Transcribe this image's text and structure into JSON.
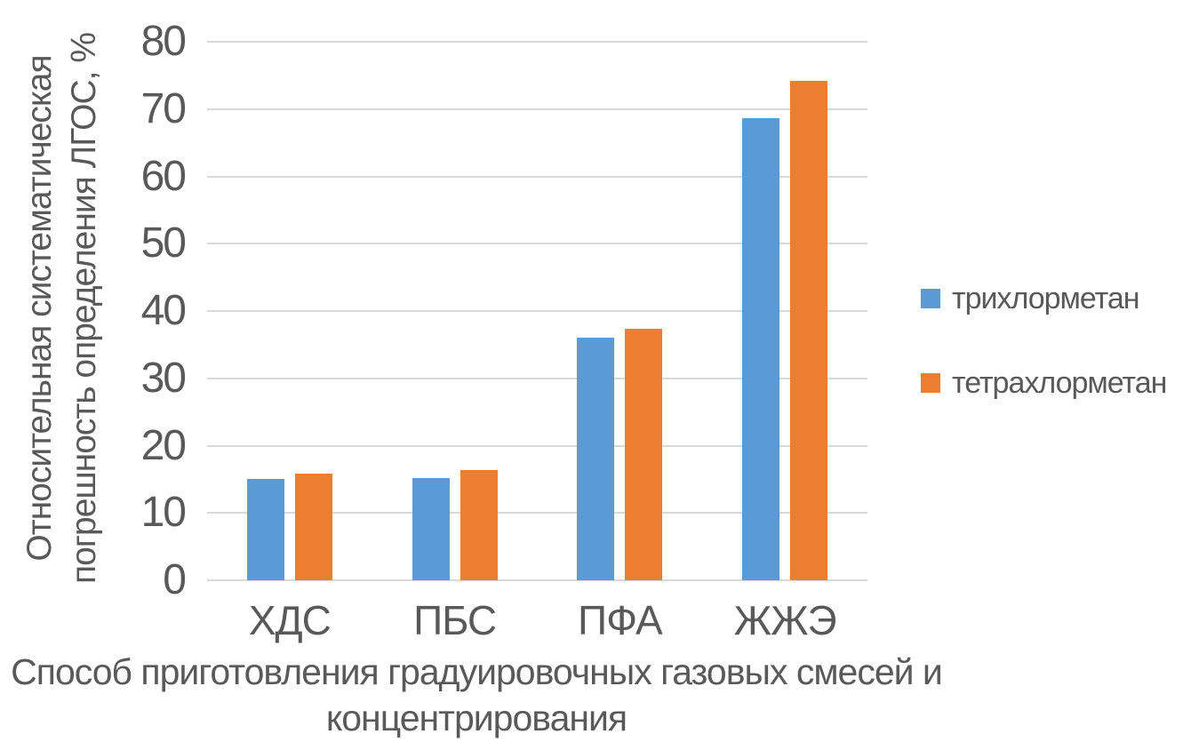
{
  "chart_data": {
    "type": "bar",
    "categories": [
      "ХДС",
      "ПБС",
      "ПФА",
      "ЖЖЭ"
    ],
    "series": [
      {
        "name": "трихлорметан",
        "color": "#5B9BD5",
        "values": [
          15,
          15.2,
          36,
          68.7
        ]
      },
      {
        "name": "тетрахлорметан",
        "color": "#ED7D31",
        "values": [
          15.8,
          16.4,
          37.4,
          74.2
        ]
      }
    ],
    "title": "",
    "xlabel": "Способ приготовления градуировочных газовых смесей и концентрирования",
    "ylabel": "Относительная систематическая погрешность определения ЛГОС, %",
    "ylim": [
      0,
      80
    ],
    "yticks": [
      0,
      10,
      20,
      30,
      40,
      50,
      60,
      70,
      80
    ],
    "grid": true,
    "legend_position": "right"
  },
  "axis_titles": {
    "y_line1": "Относительная систематическая",
    "y_line2": "погрешность определения ЛГОС, %",
    "x_line1": "Способ приготовления градуировочных газовых смесей и",
    "x_line2": "концентрирования"
  },
  "colors": {
    "text": "#595959",
    "gridline": "#D9D9D9",
    "background": "#FFFFFF",
    "series_blue": "#5B9BD5",
    "series_orange": "#ED7D31"
  }
}
